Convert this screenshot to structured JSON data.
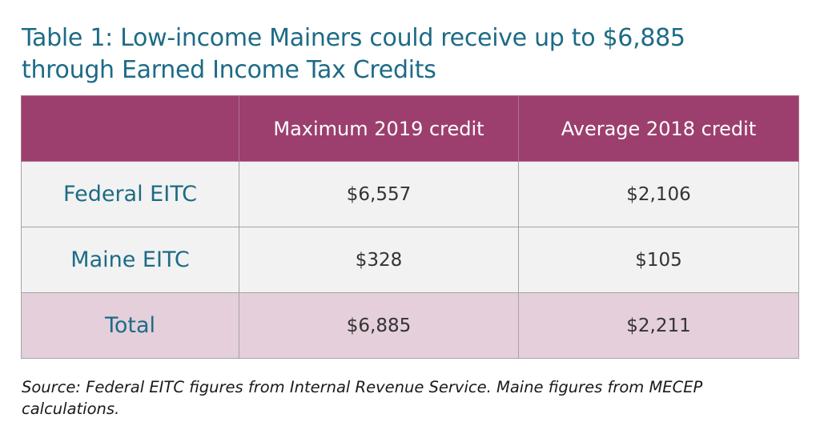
{
  "title": {
    "line1": "Table 1:  Low-income Mainers could receive up to $6,885",
    "line2": "through Earned Income Tax Credits"
  },
  "table": {
    "headers": [
      "",
      "Maximum 2019 credit",
      "Average 2018 credit"
    ],
    "rows": [
      {
        "label": "Federal EITC",
        "max_2019": "$6,557",
        "avg_2018": "$2,106"
      },
      {
        "label": "Maine EITC",
        "max_2019": "$328",
        "avg_2018": "$105"
      },
      {
        "label": "Total",
        "max_2019": "$6,885",
        "avg_2018": "$2,211"
      }
    ]
  },
  "source": {
    "line1": "Source: Federal EITC figures from Internal Revenue Service. Maine figures from MECEP",
    "line2": "calculations."
  },
  "colors": {
    "title_text": "#1d6b86",
    "header_bg": "#9c3f6e",
    "row_bg": "#f2f2f2",
    "total_row_bg": "#e4cfdb"
  }
}
